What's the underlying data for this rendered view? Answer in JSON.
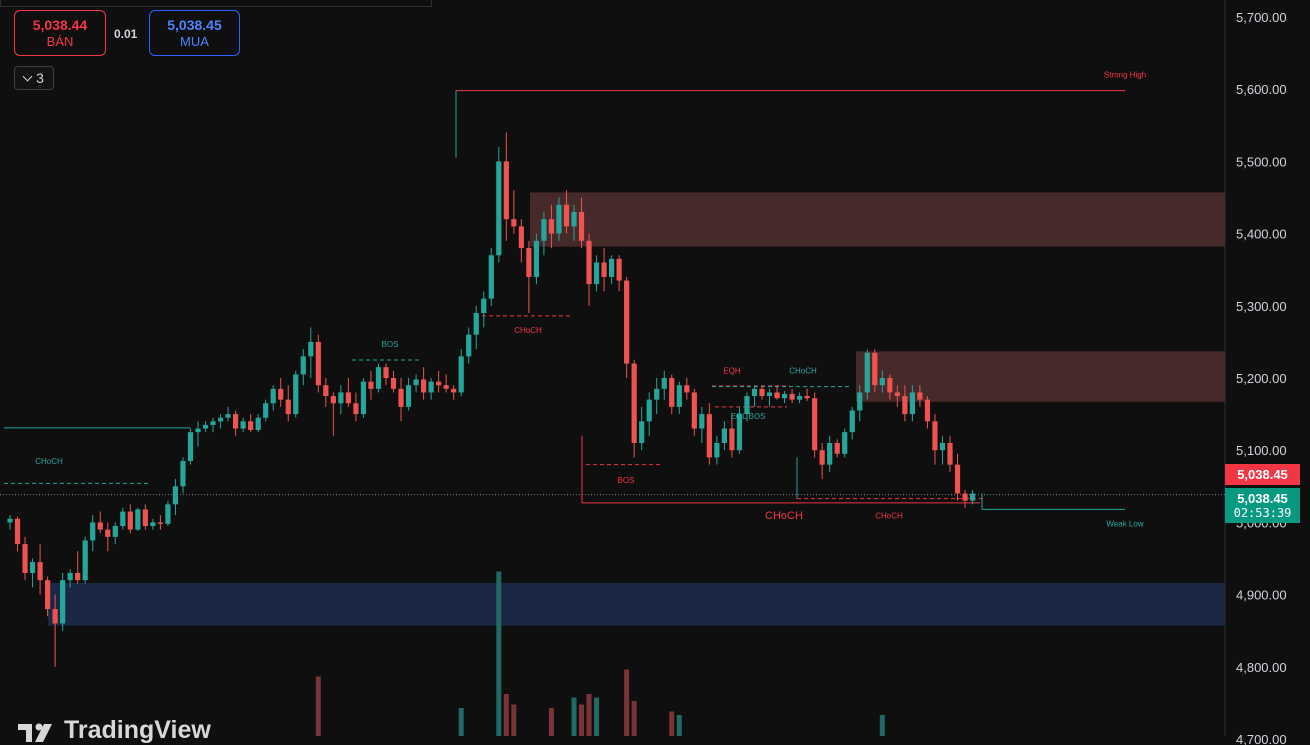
{
  "quote": {
    "sell_price": "5,038.44",
    "sell_label": "BÁN",
    "spread": "0.01",
    "buy_price": "5,038.45",
    "buy_label": "MUA"
  },
  "indicators_toggle": {
    "count": "3"
  },
  "watermark": {
    "text": "TradingView"
  },
  "price_axis": {
    "ticks": [
      "5,700.00",
      "5,600.00",
      "5,500.00",
      "5,400.00",
      "5,300.00",
      "5,200.00",
      "5,100.00",
      "5,000.00",
      "4,900.00",
      "4,800.00",
      "4,700.00"
    ],
    "last_price_red": "5,038.45",
    "last_price_green": "5,038.45",
    "countdown": "02:53:39"
  },
  "colors": {
    "up": "#26a69a",
    "down": "#ef5350",
    "supply_zone": "#4a2b2b",
    "demand_zone": "#1c2a47",
    "background": "#0f0f0f"
  },
  "chart_data": {
    "type": "candlestick",
    "ylim": [
      4700,
      5720
    ],
    "last_price": 5038.45,
    "candles": [
      [
        5000,
        5010,
        4990,
        5005
      ],
      [
        5005,
        5008,
        4960,
        4970
      ],
      [
        4970,
        4980,
        4920,
        4930
      ],
      [
        4930,
        4950,
        4910,
        4945
      ],
      [
        4945,
        4970,
        4900,
        4920
      ],
      [
        4920,
        4925,
        4870,
        4880
      ],
      [
        4880,
        4900,
        4800,
        4860
      ],
      [
        4860,
        4930,
        4850,
        4920
      ],
      [
        4920,
        4935,
        4910,
        4930
      ],
      [
        4930,
        4960,
        4915,
        4920
      ],
      [
        4920,
        4980,
        4915,
        4975
      ],
      [
        4975,
        5010,
        4960,
        5000
      ],
      [
        5000,
        5015,
        4985,
        4990
      ],
      [
        4990,
        5000,
        4960,
        4980
      ],
      [
        4980,
        5000,
        4970,
        4995
      ],
      [
        4995,
        5020,
        4990,
        5015
      ],
      [
        5015,
        5025,
        4985,
        4990
      ],
      [
        4990,
        5020,
        4988,
        5018
      ],
      [
        5018,
        5025,
        4990,
        4995
      ],
      [
        4995,
        5005,
        4990,
        5000
      ],
      [
        5000,
        5010,
        4990,
        4998
      ],
      [
        4998,
        5030,
        4995,
        5025
      ],
      [
        5025,
        5060,
        5010,
        5050
      ],
      [
        5050,
        5090,
        5040,
        5085
      ],
      [
        5085,
        5130,
        5080,
        5125
      ],
      [
        5125,
        5140,
        5105,
        5130
      ],
      [
        5130,
        5140,
        5125,
        5135
      ],
      [
        5135,
        5145,
        5125,
        5140
      ],
      [
        5140,
        5150,
        5130,
        5145
      ],
      [
        5145,
        5160,
        5140,
        5150
      ],
      [
        5150,
        5155,
        5120,
        5130
      ],
      [
        5130,
        5145,
        5125,
        5140
      ],
      [
        5140,
        5150,
        5125,
        5128
      ],
      [
        5128,
        5150,
        5125,
        5145
      ],
      [
        5145,
        5170,
        5140,
        5165
      ],
      [
        5165,
        5190,
        5155,
        5185
      ],
      [
        5185,
        5200,
        5160,
        5170
      ],
      [
        5170,
        5190,
        5140,
        5150
      ],
      [
        5150,
        5210,
        5145,
        5205
      ],
      [
        5205,
        5240,
        5190,
        5230
      ],
      [
        5230,
        5270,
        5200,
        5250
      ],
      [
        5250,
        5260,
        5180,
        5190
      ],
      [
        5190,
        5200,
        5160,
        5175
      ],
      [
        5175,
        5180,
        5120,
        5165
      ],
      [
        5165,
        5190,
        5150,
        5180
      ],
      [
        5180,
        5200,
        5160,
        5165
      ],
      [
        5165,
        5180,
        5140,
        5150
      ],
      [
        5150,
        5200,
        5145,
        5195
      ],
      [
        5195,
        5210,
        5170,
        5185
      ],
      [
        5185,
        5220,
        5180,
        5215
      ],
      [
        5215,
        5220,
        5190,
        5200
      ],
      [
        5200,
        5210,
        5180,
        5185
      ],
      [
        5185,
        5200,
        5140,
        5160
      ],
      [
        5160,
        5200,
        5155,
        5190
      ],
      [
        5190,
        5205,
        5180,
        5198
      ],
      [
        5198,
        5215,
        5170,
        5180
      ],
      [
        5180,
        5200,
        5170,
        5195
      ],
      [
        5195,
        5210,
        5180,
        5190
      ],
      [
        5190,
        5205,
        5180,
        5185
      ],
      [
        5185,
        5190,
        5170,
        5180
      ],
      [
        5180,
        5240,
        5175,
        5230
      ],
      [
        5230,
        5270,
        5220,
        5260
      ],
      [
        5260,
        5300,
        5240,
        5290
      ],
      [
        5290,
        5320,
        5270,
        5310
      ],
      [
        5310,
        5380,
        5300,
        5370
      ],
      [
        5370,
        5520,
        5360,
        5500
      ],
      [
        5500,
        5540,
        5390,
        5420
      ],
      [
        5420,
        5460,
        5400,
        5410
      ],
      [
        5410,
        5420,
        5360,
        5380
      ],
      [
        5380,
        5390,
        5290,
        5340
      ],
      [
        5340,
        5400,
        5330,
        5390
      ],
      [
        5390,
        5430,
        5370,
        5420
      ],
      [
        5420,
        5440,
        5380,
        5400
      ],
      [
        5400,
        5450,
        5390,
        5440
      ],
      [
        5440,
        5460,
        5400,
        5410
      ],
      [
        5410,
        5440,
        5390,
        5430
      ],
      [
        5430,
        5450,
        5380,
        5390
      ],
      [
        5390,
        5400,
        5300,
        5330
      ],
      [
        5330,
        5370,
        5320,
        5360
      ],
      [
        5360,
        5380,
        5320,
        5340
      ],
      [
        5340,
        5370,
        5330,
        5365
      ],
      [
        5365,
        5370,
        5320,
        5335
      ],
      [
        5335,
        5340,
        5200,
        5220
      ],
      [
        5220,
        5225,
        5090,
        5110
      ],
      [
        5110,
        5160,
        5100,
        5140
      ],
      [
        5140,
        5180,
        5120,
        5170
      ],
      [
        5170,
        5200,
        5150,
        5185
      ],
      [
        5185,
        5210,
        5170,
        5200
      ],
      [
        5200,
        5205,
        5150,
        5160
      ],
      [
        5160,
        5195,
        5150,
        5190
      ],
      [
        5190,
        5200,
        5170,
        5180
      ],
      [
        5180,
        5185,
        5120,
        5130
      ],
      [
        5130,
        5160,
        5110,
        5150
      ],
      [
        5150,
        5165,
        5080,
        5090
      ],
      [
        5090,
        5120,
        5080,
        5110
      ],
      [
        5110,
        5140,
        5100,
        5130
      ],
      [
        5130,
        5150,
        5090,
        5100
      ],
      [
        5100,
        5160,
        5095,
        5150
      ],
      [
        5150,
        5180,
        5140,
        5175
      ],
      [
        5175,
        5190,
        5160,
        5185
      ],
      [
        5185,
        5190,
        5170,
        5175
      ],
      [
        5175,
        5185,
        5160,
        5180
      ],
      [
        5180,
        5190,
        5170,
        5172
      ],
      [
        5172,
        5182,
        5165,
        5178
      ],
      [
        5178,
        5185,
        5165,
        5170
      ],
      [
        5170,
        5180,
        5165,
        5175
      ],
      [
        5175,
        5185,
        5168,
        5172
      ],
      [
        5172,
        5180,
        5090,
        5100
      ],
      [
        5100,
        5110,
        5060,
        5080
      ],
      [
        5080,
        5120,
        5070,
        5110
      ],
      [
        5110,
        5115,
        5090,
        5095
      ],
      [
        5095,
        5130,
        5090,
        5125
      ],
      [
        5125,
        5160,
        5115,
        5155
      ],
      [
        5155,
        5190,
        5140,
        5180
      ],
      [
        5180,
        5240,
        5170,
        5235
      ],
      [
        5235,
        5240,
        5180,
        5190
      ],
      [
        5190,
        5210,
        5180,
        5200
      ],
      [
        5200,
        5205,
        5170,
        5180
      ],
      [
        5180,
        5190,
        5160,
        5175
      ],
      [
        5175,
        5190,
        5140,
        5150
      ],
      [
        5150,
        5190,
        5140,
        5180
      ],
      [
        5180,
        5190,
        5160,
        5170
      ],
      [
        5170,
        5175,
        5130,
        5140
      ],
      [
        5140,
        5150,
        5080,
        5100
      ],
      [
        5100,
        5120,
        5080,
        5110
      ],
      [
        5110,
        5120,
        5070,
        5080
      ],
      [
        5080,
        5095,
        5030,
        5040
      ],
      [
        5040,
        5045,
        5020,
        5030
      ],
      [
        5030,
        5045,
        5025,
        5040
      ]
    ],
    "volume": [
      0,
      0,
      0,
      0,
      0,
      0,
      0,
      0,
      0,
      0,
      0,
      0,
      0,
      0,
      0,
      0,
      0,
      0,
      0,
      0,
      0,
      0,
      0,
      0,
      0,
      0,
      0,
      0,
      0,
      0,
      0,
      0,
      0,
      0,
      0,
      0,
      0,
      0,
      0,
      0,
      0,
      85,
      0,
      0,
      0,
      0,
      0,
      0,
      0,
      0,
      0,
      0,
      0,
      0,
      0,
      0,
      0,
      0,
      0,
      0,
      40,
      0,
      0,
      0,
      0,
      235,
      60,
      45,
      0,
      0,
      0,
      0,
      40,
      0,
      0,
      55,
      45,
      60,
      55,
      0,
      0,
      0,
      95,
      50,
      0,
      0,
      0,
      0,
      35,
      30,
      0,
      0,
      0,
      0,
      0,
      0,
      0,
      0,
      0,
      0,
      0,
      0,
      0,
      0,
      0,
      0,
      0,
      0,
      0,
      0,
      0,
      0,
      0,
      0,
      0,
      0,
      30,
      0,
      0,
      0,
      0,
      0,
      0,
      0,
      0,
      0,
      0
    ],
    "zones": [
      {
        "kind": "supply",
        "top": 5457,
        "bottom": 5382
      },
      {
        "kind": "supply",
        "top": 5237,
        "bottom": 5167
      },
      {
        "kind": "demand",
        "top": 4916,
        "bottom": 4857
      }
    ],
    "structure_labels": [
      {
        "text": "Strong High",
        "price": 5598
      },
      {
        "text": "Weak Low",
        "price": 5018
      },
      {
        "text": "CHoCH",
        "price": 5063
      },
      {
        "text": "BOS",
        "price": 5225
      },
      {
        "text": "CHoCH",
        "price": 5286
      },
      {
        "text": "BOS",
        "price": 5077
      },
      {
        "text": "EQH",
        "price": 5188
      },
      {
        "text": "CHoCH",
        "price": 5188
      },
      {
        "text": "EQL BOS",
        "price": 5160
      },
      {
        "text": "CHoCH",
        "price": 5027
      },
      {
        "text": "CHoCH",
        "price": 5025
      }
    ]
  }
}
